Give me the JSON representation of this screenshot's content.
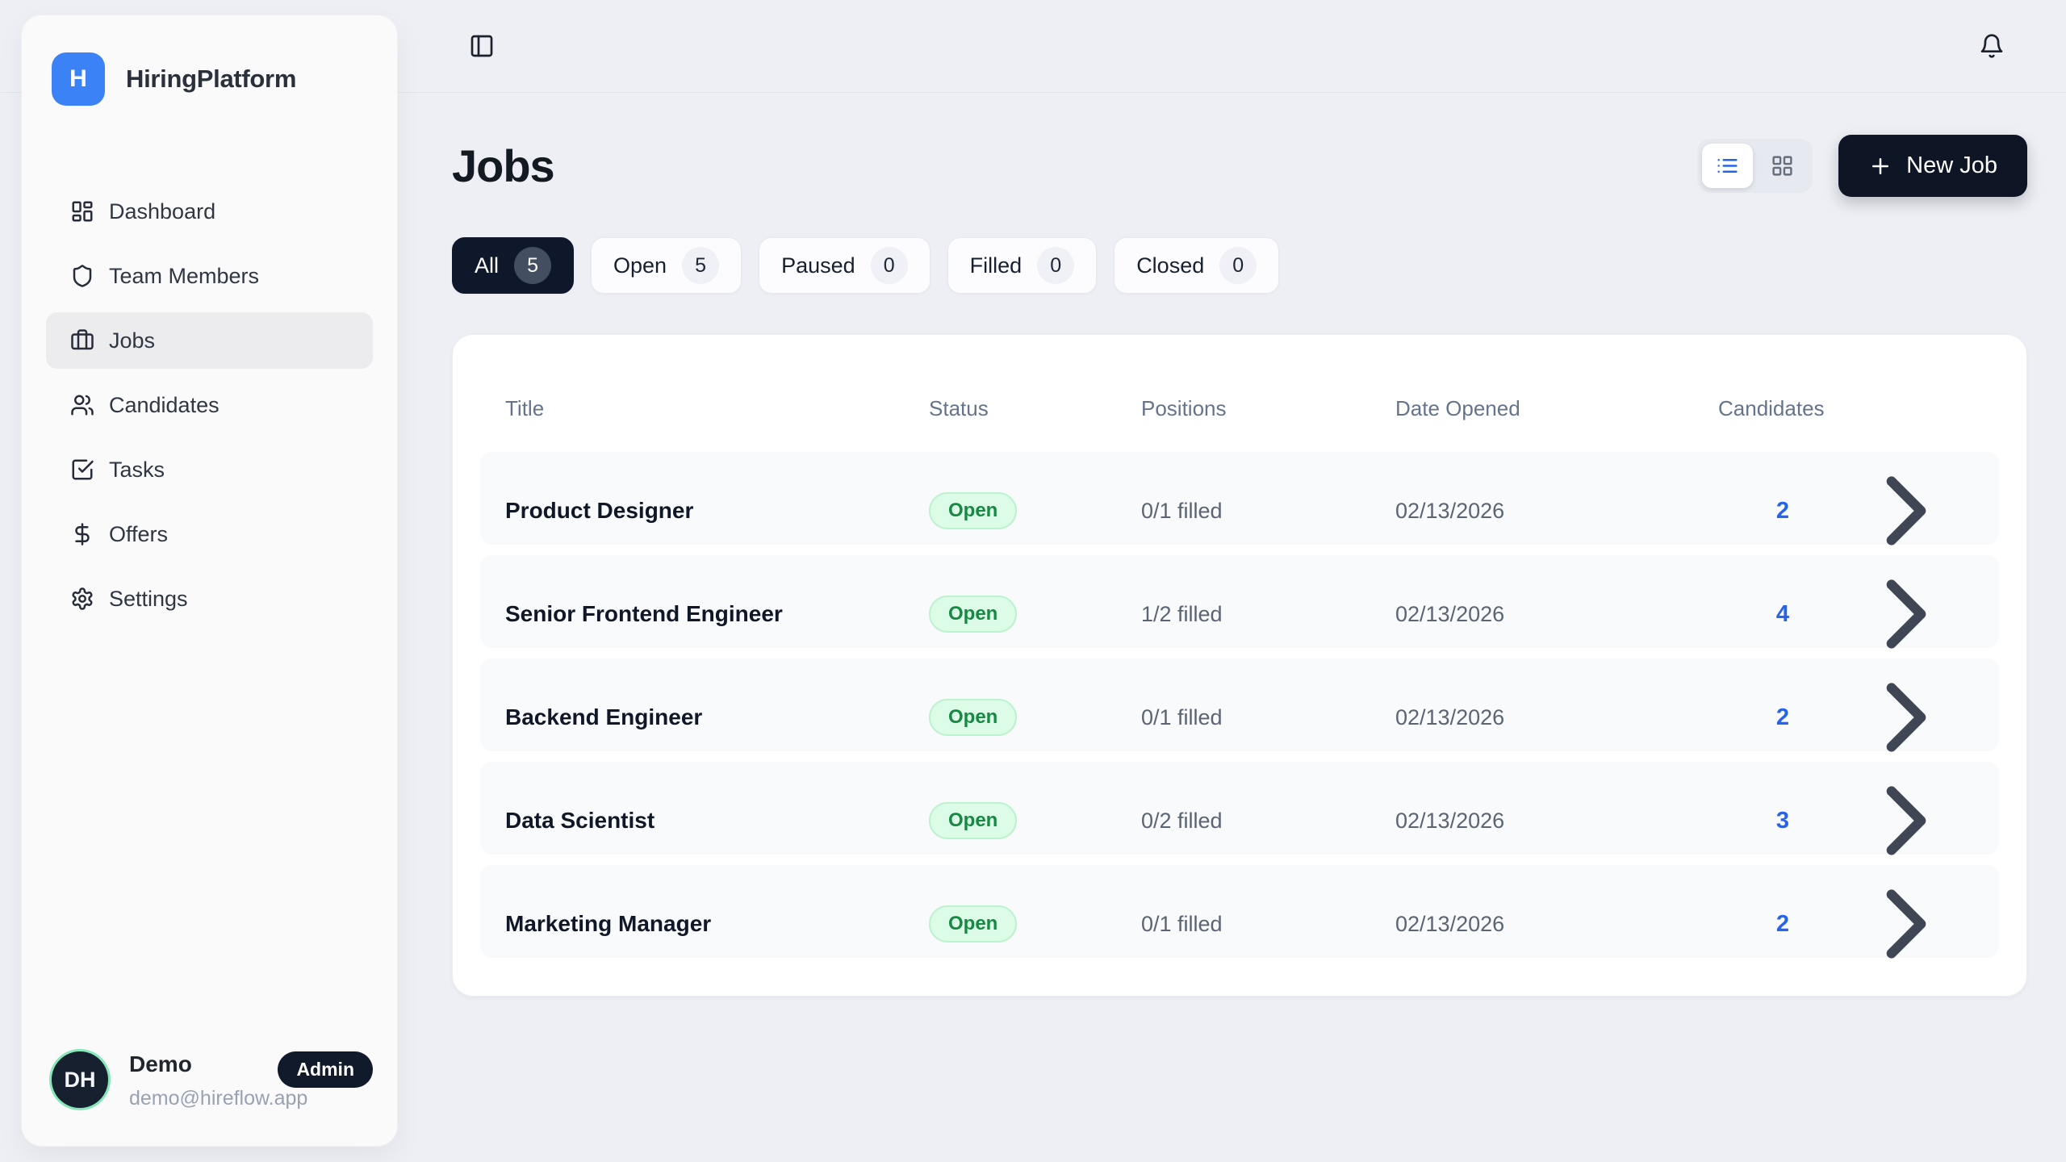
{
  "app": {
    "name": "HiringPlatform",
    "logo_letter": "H"
  },
  "colors": {
    "accent_blue": "#3b82f6",
    "link_blue": "#2563eb",
    "navy_dark": "#0f172a",
    "open_badge_bg": "#dcfce7",
    "open_badge_text": "#168a42",
    "page_bg": "#edeff4",
    "row_bg": "#f8fafc",
    "avatar_ring_green": "#86e8b9"
  },
  "sidebar": {
    "items": [
      {
        "label": "Dashboard",
        "icon": "layout-dashboard",
        "active": false
      },
      {
        "label": "Team Members",
        "icon": "shield",
        "active": false
      },
      {
        "label": "Jobs",
        "icon": "briefcase",
        "active": true
      },
      {
        "label": "Candidates",
        "icon": "users",
        "active": false
      },
      {
        "label": "Tasks",
        "icon": "check-square",
        "active": false
      },
      {
        "label": "Offers",
        "icon": "dollar-sign",
        "active": false
      },
      {
        "label": "Settings",
        "icon": "settings",
        "active": false
      }
    ],
    "user": {
      "initials": "DH",
      "name": "Demo",
      "email": "demo@hireflow.app",
      "role_badge": "Admin"
    }
  },
  "main": {
    "title": "Jobs",
    "new_job_label": "New Job",
    "view_modes": [
      {
        "name": "list",
        "active": true
      },
      {
        "name": "grid",
        "active": false
      }
    ],
    "filters": [
      {
        "label": "All",
        "count": "5",
        "active": true
      },
      {
        "label": "Open",
        "count": "5",
        "active": false
      },
      {
        "label": "Paused",
        "count": "0",
        "active": false
      },
      {
        "label": "Filled",
        "count": "0",
        "active": false
      },
      {
        "label": "Closed",
        "count": "0",
        "active": false
      }
    ],
    "table": {
      "columns": [
        "Title",
        "Status",
        "Positions",
        "Date Opened",
        "Candidates"
      ],
      "rows": [
        {
          "title": "Product Designer",
          "status": "Open",
          "positions": "0/1 filled",
          "date_opened": "02/13/2026",
          "candidates": "2"
        },
        {
          "title": "Senior Frontend Engineer",
          "status": "Open",
          "positions": "1/2 filled",
          "date_opened": "02/13/2026",
          "candidates": "4"
        },
        {
          "title": "Backend Engineer",
          "status": "Open",
          "positions": "0/1 filled",
          "date_opened": "02/13/2026",
          "candidates": "2"
        },
        {
          "title": "Data Scientist",
          "status": "Open",
          "positions": "0/2 filled",
          "date_opened": "02/13/2026",
          "candidates": "3"
        },
        {
          "title": "Marketing Manager",
          "status": "Open",
          "positions": "0/1 filled",
          "date_opened": "02/13/2026",
          "candidates": "2"
        }
      ]
    }
  }
}
